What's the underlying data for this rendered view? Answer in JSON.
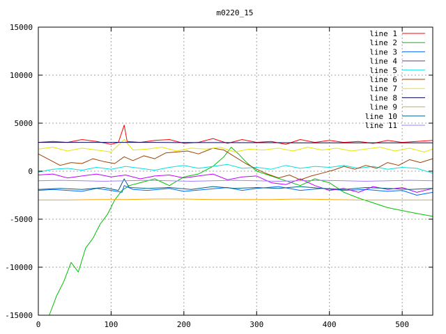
{
  "chart_data": {
    "type": "line",
    "title": "m0220_15",
    "xlabel": "",
    "ylabel": "",
    "xlim": [
      0,
      542
    ],
    "ylim": [
      -15000,
      15000
    ],
    "xticks": [
      0,
      100,
      200,
      300,
      400,
      500
    ],
    "yticks": [
      -15000,
      -10000,
      -5000,
      0,
      5000,
      10000,
      15000
    ],
    "grid": true,
    "legend_position": "top-right",
    "series": [
      {
        "name": "line 1",
        "color": "#ff0000",
        "points": [
          [
            0,
            3000
          ],
          [
            20,
            3100
          ],
          [
            40,
            3000
          ],
          [
            60,
            3300
          ],
          [
            80,
            3100
          ],
          [
            100,
            2800
          ],
          [
            110,
            3000
          ],
          [
            118,
            4800
          ],
          [
            122,
            3100
          ],
          [
            140,
            3000
          ],
          [
            160,
            3200
          ],
          [
            180,
            3300
          ],
          [
            200,
            2900
          ],
          [
            220,
            3000
          ],
          [
            240,
            3400
          ],
          [
            260,
            2900
          ],
          [
            280,
            3300
          ],
          [
            300,
            3000
          ],
          [
            320,
            3100
          ],
          [
            340,
            2800
          ],
          [
            360,
            3300
          ],
          [
            380,
            3000
          ],
          [
            400,
            3200
          ],
          [
            420,
            3000
          ],
          [
            440,
            3100
          ],
          [
            460,
            2900
          ],
          [
            480,
            3200
          ],
          [
            500,
            3000
          ],
          [
            520,
            3100
          ],
          [
            542,
            3200
          ]
        ]
      },
      {
        "name": "line 2",
        "color": "#00c000",
        "points": [
          [
            0,
            -15500
          ],
          [
            15,
            -15000
          ],
          [
            25,
            -13000
          ],
          [
            35,
            -11500
          ],
          [
            45,
            -9500
          ],
          [
            55,
            -10500
          ],
          [
            65,
            -8000
          ],
          [
            75,
            -7000
          ],
          [
            85,
            -5500
          ],
          [
            95,
            -4500
          ],
          [
            105,
            -3000
          ],
          [
            115,
            -2000
          ],
          [
            125,
            -1500
          ],
          [
            140,
            -1200
          ],
          [
            160,
            -800
          ],
          [
            180,
            -1500
          ],
          [
            200,
            -600
          ],
          [
            220,
            -300
          ],
          [
            240,
            500
          ],
          [
            255,
            1500
          ],
          [
            265,
            2500
          ],
          [
            275,
            1800
          ],
          [
            285,
            1000
          ],
          [
            300,
            0
          ],
          [
            320,
            -500
          ],
          [
            340,
            -1000
          ],
          [
            360,
            -1500
          ],
          [
            380,
            -800
          ],
          [
            400,
            -1200
          ],
          [
            420,
            -2200
          ],
          [
            440,
            -2800
          ],
          [
            460,
            -3300
          ],
          [
            480,
            -3800
          ],
          [
            500,
            -4100
          ],
          [
            520,
            -4400
          ],
          [
            542,
            -4700
          ]
        ]
      },
      {
        "name": "line 3",
        "color": "#0066ff",
        "points": [
          [
            0,
            -2000
          ],
          [
            20,
            -1900
          ],
          [
            40,
            -2000
          ],
          [
            60,
            -2100
          ],
          [
            80,
            -1800
          ],
          [
            100,
            -2000
          ],
          [
            115,
            -2200
          ],
          [
            118,
            -1500
          ],
          [
            130,
            -1900
          ],
          [
            150,
            -2000
          ],
          [
            180,
            -1800
          ],
          [
            200,
            -2100
          ],
          [
            230,
            -1900
          ],
          [
            260,
            -1700
          ],
          [
            280,
            -2000
          ],
          [
            300,
            -1800
          ],
          [
            330,
            -1600
          ],
          [
            360,
            -2000
          ],
          [
            390,
            -1800
          ],
          [
            420,
            -2000
          ],
          [
            450,
            -1900
          ],
          [
            480,
            -2100
          ],
          [
            500,
            -2000
          ],
          [
            520,
            -2500
          ],
          [
            542,
            -2200
          ]
        ]
      },
      {
        "name": "line 4",
        "color": "#c000ff",
        "points": [
          [
            0,
            -400
          ],
          [
            20,
            -300
          ],
          [
            40,
            -700
          ],
          [
            60,
            -500
          ],
          [
            80,
            -300
          ],
          [
            100,
            -600
          ],
          [
            120,
            -400
          ],
          [
            140,
            -800
          ],
          [
            160,
            -500
          ],
          [
            180,
            -400
          ],
          [
            200,
            -700
          ],
          [
            220,
            -500
          ],
          [
            240,
            -300
          ],
          [
            260,
            -900
          ],
          [
            280,
            -600
          ],
          [
            300,
            -500
          ],
          [
            320,
            -1200
          ],
          [
            340,
            -1400
          ],
          [
            360,
            -800
          ],
          [
            380,
            -1500
          ],
          [
            400,
            -2000
          ],
          [
            420,
            -1800
          ],
          [
            440,
            -2200
          ],
          [
            460,
            -1600
          ],
          [
            480,
            -1900
          ],
          [
            500,
            -1700
          ],
          [
            520,
            -2200
          ],
          [
            542,
            -1800
          ]
        ]
      },
      {
        "name": "line 5",
        "color": "#00e0e0",
        "points": [
          [
            0,
            -100
          ],
          [
            20,
            200
          ],
          [
            40,
            300
          ],
          [
            60,
            100
          ],
          [
            80,
            400
          ],
          [
            100,
            200
          ],
          [
            120,
            500
          ],
          [
            140,
            300
          ],
          [
            160,
            100
          ],
          [
            180,
            400
          ],
          [
            200,
            600
          ],
          [
            220,
            300
          ],
          [
            240,
            500
          ],
          [
            260,
            700
          ],
          [
            280,
            300
          ],
          [
            300,
            400
          ],
          [
            320,
            200
          ],
          [
            340,
            600
          ],
          [
            360,
            300
          ],
          [
            380,
            500
          ],
          [
            400,
            400
          ],
          [
            420,
            600
          ],
          [
            440,
            300
          ],
          [
            460,
            500
          ],
          [
            480,
            200
          ],
          [
            500,
            400
          ],
          [
            520,
            300
          ],
          [
            542,
            -200
          ]
        ]
      },
      {
        "name": "line 6",
        "color": "#a04000",
        "points": [
          [
            0,
            1800
          ],
          [
            15,
            1200
          ],
          [
            30,
            600
          ],
          [
            45,
            900
          ],
          [
            60,
            800
          ],
          [
            75,
            1300
          ],
          [
            90,
            1000
          ],
          [
            105,
            800
          ],
          [
            118,
            1500
          ],
          [
            130,
            1100
          ],
          [
            145,
            1600
          ],
          [
            160,
            1300
          ],
          [
            175,
            1900
          ],
          [
            190,
            2000
          ],
          [
            205,
            2100
          ],
          [
            220,
            1800
          ],
          [
            240,
            2400
          ],
          [
            255,
            2200
          ],
          [
            270,
            1500
          ],
          [
            285,
            800
          ],
          [
            300,
            200
          ],
          [
            315,
            -300
          ],
          [
            330,
            -700
          ],
          [
            345,
            -400
          ],
          [
            360,
            -900
          ],
          [
            375,
            -500
          ],
          [
            390,
            -200
          ],
          [
            405,
            100
          ],
          [
            420,
            500
          ],
          [
            435,
            200
          ],
          [
            450,
            600
          ],
          [
            465,
            300
          ],
          [
            480,
            900
          ],
          [
            495,
            600
          ],
          [
            510,
            1200
          ],
          [
            525,
            900
          ],
          [
            542,
            1300
          ]
        ]
      },
      {
        "name": "line 7",
        "color": "#e6e600",
        "points": [
          [
            0,
            2300
          ],
          [
            20,
            2500
          ],
          [
            40,
            2100
          ],
          [
            60,
            2400
          ],
          [
            80,
            2200
          ],
          [
            100,
            2000
          ],
          [
            118,
            3300
          ],
          [
            130,
            2200
          ],
          [
            150,
            2300
          ],
          [
            170,
            2500
          ],
          [
            190,
            2100
          ],
          [
            210,
            2400
          ],
          [
            230,
            2300
          ],
          [
            250,
            2500
          ],
          [
            270,
            2000
          ],
          [
            290,
            2300
          ],
          [
            310,
            2200
          ],
          [
            330,
            2400
          ],
          [
            350,
            2100
          ],
          [
            370,
            2500
          ],
          [
            390,
            2200
          ],
          [
            410,
            2400
          ],
          [
            430,
            2100
          ],
          [
            450,
            2300
          ],
          [
            470,
            2500
          ],
          [
            490,
            2100
          ],
          [
            510,
            2400
          ],
          [
            530,
            2000
          ],
          [
            542,
            2300
          ]
        ]
      },
      {
        "name": "line 8",
        "color": "#000060",
        "points": [
          [
            0,
            3000
          ],
          [
            40,
            3000
          ],
          [
            80,
            3000
          ],
          [
            120,
            3000
          ],
          [
            160,
            3000
          ],
          [
            200,
            2980
          ],
          [
            240,
            2980
          ],
          [
            280,
            2970
          ],
          [
            320,
            2970
          ],
          [
            360,
            2960
          ],
          [
            400,
            2960
          ],
          [
            440,
            2950
          ],
          [
            480,
            2950
          ],
          [
            520,
            2950
          ],
          [
            542,
            2950
          ]
        ]
      },
      {
        "name": "line 9",
        "color": "#ffa500",
        "points": [
          [
            0,
            -3000
          ],
          [
            40,
            -3000
          ],
          [
            80,
            -2950
          ],
          [
            120,
            -2950
          ],
          [
            160,
            -2900
          ],
          [
            200,
            -2900
          ],
          [
            240,
            -2950
          ],
          [
            280,
            -2950
          ],
          [
            320,
            -2950
          ],
          [
            360,
            -2900
          ],
          [
            400,
            -2950
          ],
          [
            440,
            -3000
          ],
          [
            480,
            -3000
          ],
          [
            520,
            -3000
          ],
          [
            542,
            -3000
          ]
        ]
      },
      {
        "name": "line 10",
        "color": "#006080",
        "points": [
          [
            0,
            -1900
          ],
          [
            30,
            -1800
          ],
          [
            60,
            -1900
          ],
          [
            90,
            -1700
          ],
          [
            110,
            -2000
          ],
          [
            118,
            -800
          ],
          [
            125,
            -1700
          ],
          [
            150,
            -1800
          ],
          [
            180,
            -1700
          ],
          [
            210,
            -1900
          ],
          [
            240,
            -1600
          ],
          [
            270,
            -1800
          ],
          [
            300,
            -1700
          ],
          [
            330,
            -1800
          ],
          [
            360,
            -1600
          ],
          [
            390,
            -1800
          ],
          [
            420,
            -1900
          ],
          [
            450,
            -1700
          ],
          [
            480,
            -1800
          ],
          [
            510,
            -1900
          ],
          [
            542,
            -1800
          ]
        ]
      },
      {
        "name": "line 11",
        "color": "#a080ff",
        "points": [
          [
            0,
            -1000
          ],
          [
            30,
            -950
          ],
          [
            60,
            -1000
          ],
          [
            90,
            -1050
          ],
          [
            120,
            -1000
          ],
          [
            150,
            -950
          ],
          [
            180,
            -1000
          ],
          [
            210,
            -1050
          ],
          [
            240,
            -1000
          ],
          [
            270,
            -950
          ],
          [
            300,
            -1000
          ],
          [
            330,
            -1050
          ],
          [
            360,
            -1000
          ],
          [
            390,
            -950
          ],
          [
            420,
            -1000
          ],
          [
            450,
            -1050
          ],
          [
            480,
            -1000
          ],
          [
            510,
            -950
          ],
          [
            542,
            -1000
          ]
        ]
      }
    ]
  }
}
